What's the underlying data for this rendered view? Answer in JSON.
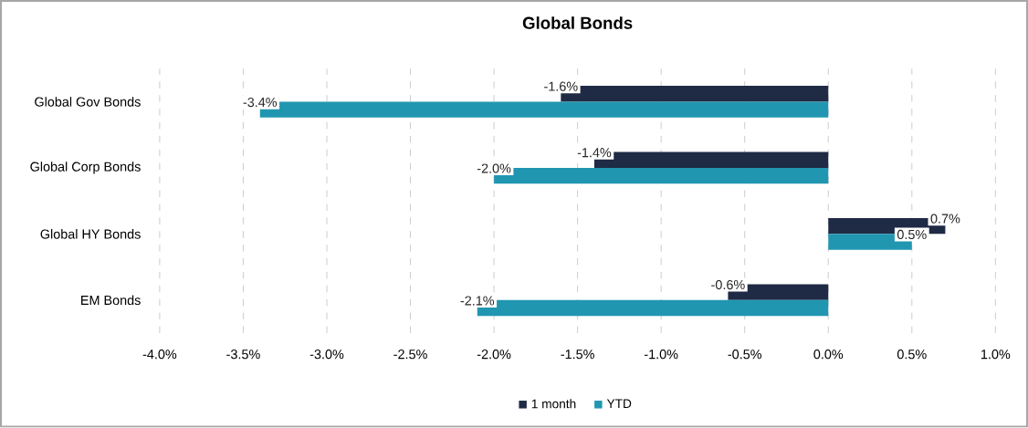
{
  "chart_data": {
    "type": "bar",
    "orientation": "horizontal",
    "title": "Global Bonds",
    "categories": [
      "Global Gov Bonds",
      "Global Corp Bonds",
      "Global HY Bonds",
      "EM Bonds"
    ],
    "series": [
      {
        "name": "1 month",
        "color": "#1f2a44",
        "values": [
          -1.6,
          -1.4,
          0.7,
          -0.6
        ],
        "value_labels": [
          "-1.6%",
          "-1.4%",
          "0.7%",
          "-0.6%"
        ]
      },
      {
        "name": "YTD",
        "color": "#2196b0",
        "values": [
          -3.4,
          -2.0,
          0.5,
          -2.1
        ],
        "value_labels": [
          "-3.4%",
          "-2.0%",
          "0.5%",
          "-2.1%"
        ]
      }
    ],
    "xlim": [
      -4,
      1
    ],
    "xticks": [
      {
        "value": -4,
        "label": "-4.0%"
      },
      {
        "value": -3.5,
        "label": "-3.5%"
      },
      {
        "value": -3,
        "label": "-3.0%"
      },
      {
        "value": -2.5,
        "label": "-2.5%"
      },
      {
        "value": -2,
        "label": "-2.0%"
      },
      {
        "value": -1.5,
        "label": "-1.5%"
      },
      {
        "value": -1,
        "label": "-1.0%"
      },
      {
        "value": -0.5,
        "label": "-0.5%"
      },
      {
        "value": 0,
        "label": "0.0%"
      },
      {
        "value": 0.5,
        "label": "0.5%"
      },
      {
        "value": 1,
        "label": "1.0%"
      }
    ],
    "grid": "x",
    "legend": "bottom"
  }
}
